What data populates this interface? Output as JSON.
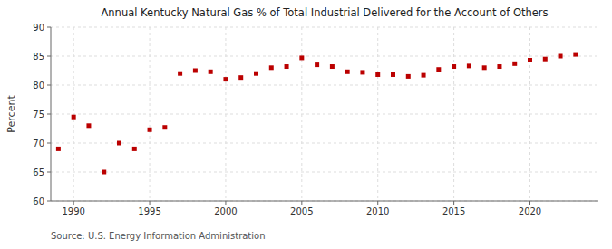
{
  "chart_data": {
    "type": "scatter",
    "title": "Annual Kentucky Natural Gas % of Total Industrial Delivered for the Account of Others",
    "ylabel": "Percent",
    "source": "Source: U.S. Energy Information Administration",
    "color": "#bb0000",
    "marker": "square",
    "grid": true,
    "xlim": [
      1988.5,
      2024.5
    ],
    "xticks": [
      1990,
      1995,
      2000,
      2005,
      2010,
      2015,
      2020
    ],
    "ylim": [
      60,
      90
    ],
    "yticks": [
      60,
      65,
      70,
      75,
      80,
      85,
      90
    ],
    "x": [
      1989,
      1990,
      1991,
      1992,
      1993,
      1994,
      1995,
      1996,
      1997,
      1998,
      1999,
      2000,
      2001,
      2002,
      2003,
      2004,
      2005,
      2006,
      2007,
      2008,
      2009,
      2010,
      2011,
      2012,
      2013,
      2014,
      2015,
      2016,
      2017,
      2018,
      2019,
      2020,
      2021,
      2022,
      2023
    ],
    "values": [
      69.0,
      74.5,
      73.0,
      65.0,
      70.0,
      69.0,
      72.3,
      72.7,
      82.0,
      82.5,
      82.3,
      81.0,
      81.3,
      82.0,
      83.0,
      83.2,
      84.7,
      83.5,
      83.2,
      82.3,
      82.2,
      81.8,
      81.8,
      81.5,
      81.7,
      82.7,
      83.2,
      83.3,
      83.0,
      83.2,
      83.7,
      84.3,
      84.5,
      85.0,
      85.3
    ]
  }
}
